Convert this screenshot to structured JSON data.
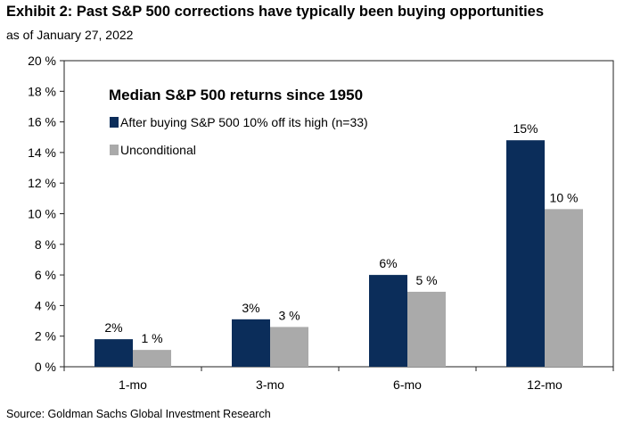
{
  "header": {
    "title": "Exhibit 2: Past S&P 500 corrections have typically been buying opportunities",
    "subtitle": "as of January 27, 2022"
  },
  "footer": {
    "source": "Source: Goldman Sachs Global Investment Research"
  },
  "colors": {
    "series_1": "#0b2d5a",
    "series_2": "#aaaaaa"
  },
  "chart_data": {
    "type": "bar",
    "title": "Median S&P 500 returns since 1950",
    "categories": [
      "1-mo",
      "3-mo",
      "6-mo",
      "12-mo"
    ],
    "series": [
      {
        "name": "After buying  S&P 500 10% off its high (n=33)",
        "values": [
          1.8,
          3.1,
          6.0,
          14.8
        ],
        "labels": [
          "2%",
          "3%",
          "6%",
          "15%"
        ]
      },
      {
        "name": "Unconditional",
        "values": [
          1.1,
          2.6,
          4.9,
          10.3
        ],
        "labels": [
          "1 %",
          "3 %",
          "5 %",
          "10 %"
        ]
      }
    ],
    "ylim": [
      0,
      20
    ],
    "y_ticks": [
      0,
      2,
      4,
      6,
      8,
      10,
      12,
      14,
      16,
      18,
      20
    ],
    "y_tick_labels": [
      "0 %",
      "2 %",
      "4 %",
      "6 %",
      "8 %",
      "10 %",
      "12 %",
      "14 %",
      "16 %",
      "18 %",
      "20 %"
    ],
    "legend_position": "top-left",
    "grid": false
  }
}
